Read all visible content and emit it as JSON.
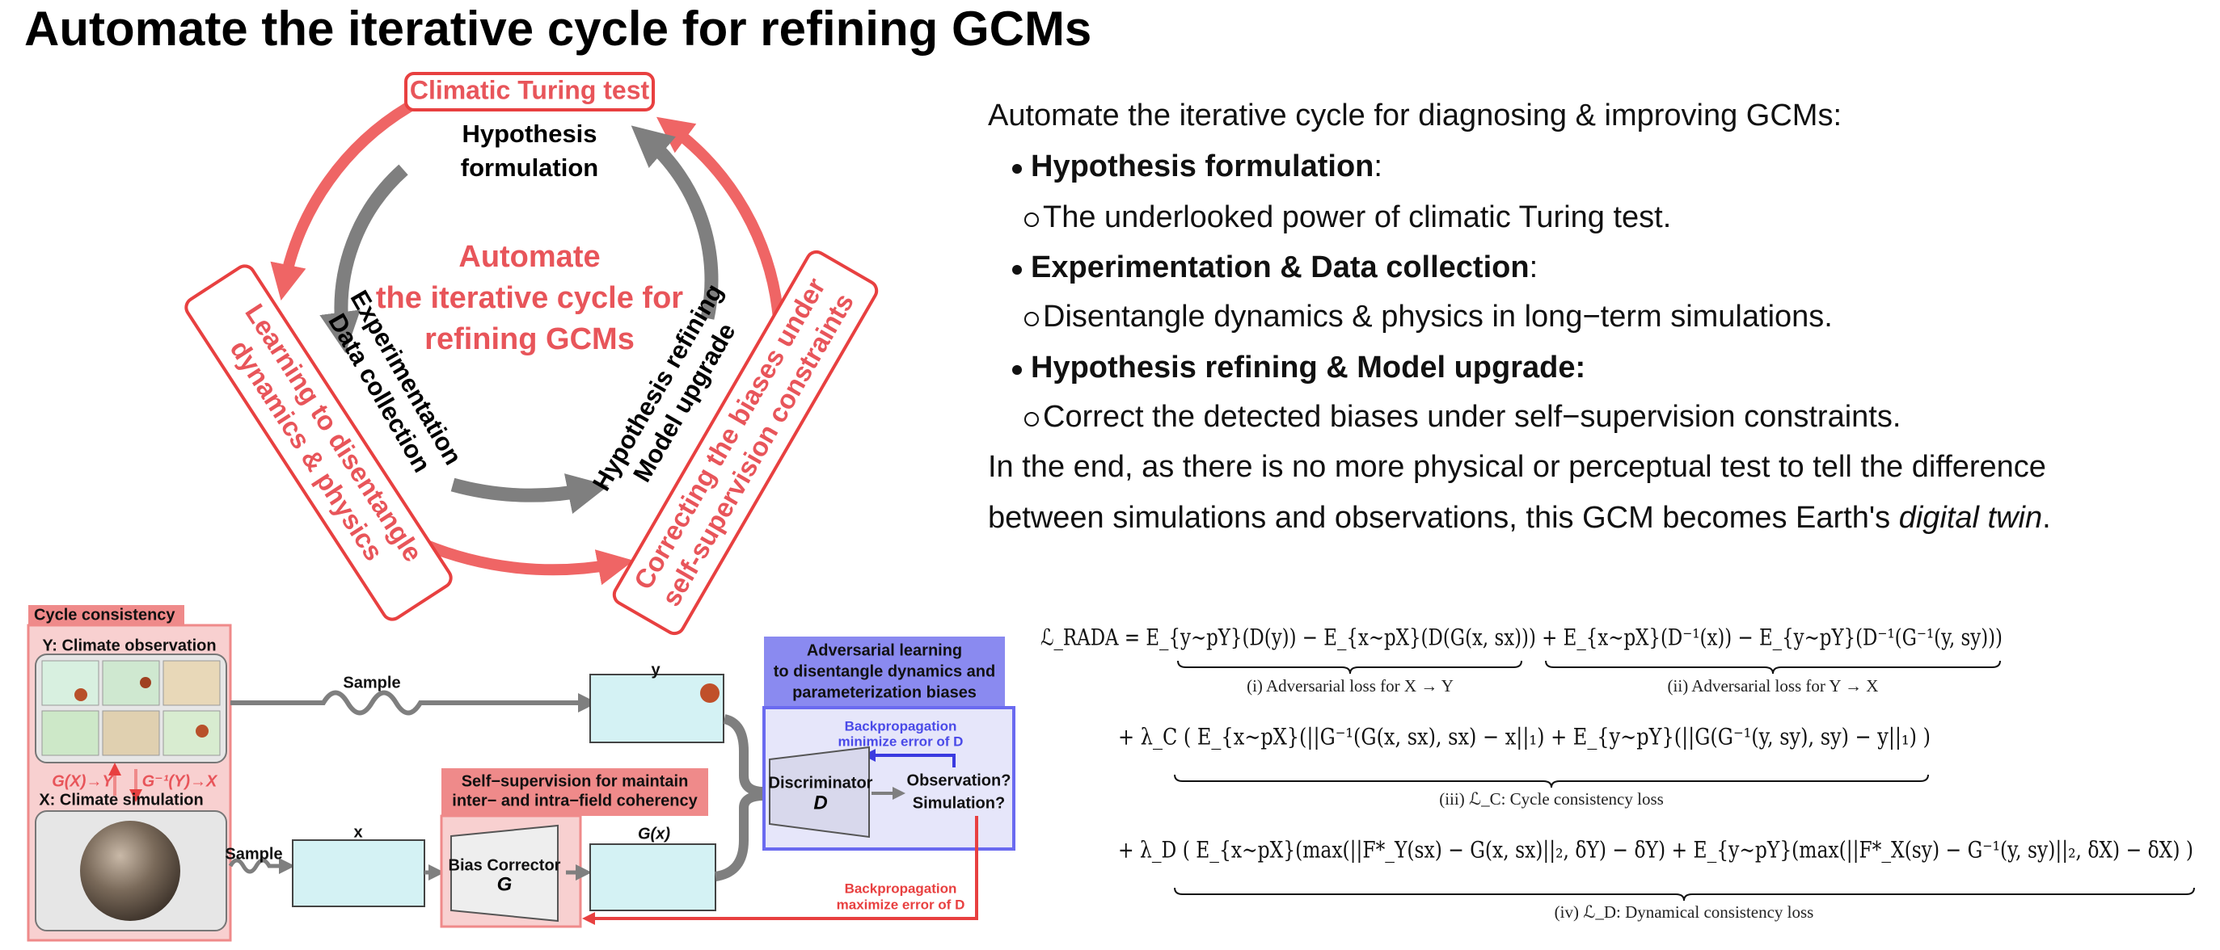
{
  "title": "Automate the iterative cycle for refining GCMs",
  "cycle": {
    "outer_top": "Climatic Turing test",
    "outer_left": [
      "Learning to disentangle",
      "dynamics & physics"
    ],
    "outer_right": [
      "Correcting the biases under",
      "self-supervision constraints"
    ],
    "inner_top": [
      "Hypothesis",
      "formulation"
    ],
    "inner_left": [
      "Experimentation",
      "Data collection"
    ],
    "inner_right": [
      "Hypothesis refining",
      "Model upgrade"
    ],
    "center": [
      "Automate",
      "the iterative cycle for",
      "refining GCMs"
    ]
  },
  "text": {
    "intro": "Automate the iterative cycle for diagnosing & improving GCMs:",
    "items": [
      {
        "heading": "Hypothesis formulation",
        "suffix": ":",
        "sub": "The underlooked power of climatic Turing test."
      },
      {
        "heading": "Experimentation & Data collection",
        "suffix": ":",
        "sub": "Disentangle dynamics & physics in long−term simulations."
      },
      {
        "heading": "Hypothesis refining & Model upgrade:",
        "sub": "Correct the detected biases under self−supervision constraints."
      }
    ],
    "conclusion": [
      "In the end, as there is no more physical or perceptual test to tell the difference",
      "between simulations and observations, this GCM becomes Earth's "
    ],
    "conclusion_em": "digital twin",
    "conclusion_end": "."
  },
  "diagram": {
    "cycle_label": "Cycle consistency",
    "y_label": "Y: Climate observation",
    "x_label": "X: Climate simulation",
    "forward": "G(X)→Y",
    "backward": "G⁻¹(Y)→X",
    "sample_top": "Sample",
    "sample_bottom": "Sample",
    "map_y": "y",
    "map_x": "x",
    "map_gx": "G(x)",
    "self_supervision": [
      "Self−supervision for maintain",
      "inter− and intra−field coherency"
    ],
    "corrector": "Bias Corrector",
    "corrector_symbol": "G",
    "adversarial": [
      "Adversarial learning",
      "to disentangle dynamics and",
      "parameterization biases"
    ],
    "discriminator": "Discriminator",
    "discriminator_symbol": "D",
    "outputs": [
      "Observation?",
      "Simulation?"
    ],
    "backprop_min": [
      "Backpropagation",
      "minimize error of D"
    ],
    "backprop_max": [
      "Backpropagation",
      "maximize error of D"
    ]
  },
  "equations": {
    "lines": [
      "ℒ_RADA = E_{y∼pY}(D(y)) − E_{x∼pX}(D(G(x, sx))) + E_{x∼pX}(D⁻¹(x)) − E_{y∼pY}(D⁻¹(G⁻¹(y, sy)))",
      "+ λ_C ( E_{x∼pX}(||G⁻¹(G(x, sx), sx) − x||₁) + E_{y∼pY}(||G(G⁻¹(y, sy), sy) − y||₁) )",
      "+ λ_D ( E_{x∼pX}(max(||F*_Y(sx) − G(x, sx)||₂, δY) − δY) + E_{y∼pY}(max(||F*_X(sy) − G⁻¹(y, sy)||₂, δX) − δX) )"
    ],
    "labels": [
      "(i) Adversarial loss for X → Y",
      "(ii) Adversarial loss for Y → X",
      "(iii) ℒ_C: Cycle consistency loss",
      "(iv) ℒ_D: Dynamical consistency loss"
    ]
  }
}
